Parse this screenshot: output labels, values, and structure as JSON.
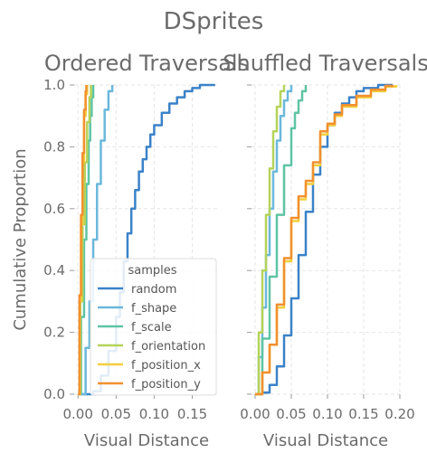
{
  "chart_data": {
    "type": "line",
    "title": "DSprites",
    "legend": {
      "title": "samples",
      "placement": "lower-right",
      "entries": [
        "random",
        "f_shape",
        "f_scale",
        "f_orientation",
        "f_position_x",
        "f_position_y"
      ]
    },
    "series_colors": {
      "random": "#3a82c8",
      "f_shape": "#6bb8db",
      "f_scale": "#5fc4a4",
      "f_orientation": "#b5d35a",
      "f_position_x": "#f2cf3e",
      "f_position_y": "#f2902e"
    },
    "grid": true,
    "ylabel": "Cumulative Proportion",
    "y_ticks": [
      "0.0",
      "0.2",
      "0.4",
      "0.6",
      "0.8",
      "1.0"
    ],
    "ylim": [
      0,
      1
    ],
    "panels": [
      {
        "title": "Ordered Traversals",
        "xlabel": "Visual Distance",
        "x_ticks": [
          "0.00",
          "0.05",
          "0.10",
          "0.15"
        ],
        "xlim": [
          -0.005,
          0.185
        ],
        "series": [
          {
            "name": "random",
            "x": [
              0.0,
              0.02,
              0.03,
              0.04,
              0.05,
              0.055,
              0.06,
              0.065,
              0.07,
              0.075,
              0.08,
              0.085,
              0.09,
              0.095,
              0.1,
              0.11,
              0.12,
              0.13,
              0.14,
              0.15,
              0.16,
              0.18
            ],
            "y": [
              0.0,
              0.01,
              0.06,
              0.14,
              0.25,
              0.33,
              0.43,
              0.52,
              0.6,
              0.66,
              0.72,
              0.76,
              0.8,
              0.84,
              0.87,
              0.91,
              0.94,
              0.96,
              0.98,
              0.99,
              1.0,
              1.0
            ]
          },
          {
            "name": "f_shape",
            "x": [
              0.0,
              0.01,
              0.015,
              0.02,
              0.025,
              0.03,
              0.035,
              0.04,
              0.045
            ],
            "y": [
              0.0,
              0.15,
              0.3,
              0.5,
              0.68,
              0.82,
              0.92,
              0.98,
              1.0
            ]
          },
          {
            "name": "f_scale",
            "x": [
              0.0,
              0.004,
              0.008,
              0.011,
              0.014,
              0.016,
              0.018,
              0.02
            ],
            "y": [
              0.0,
              0.25,
              0.5,
              0.68,
              0.82,
              0.9,
              0.96,
              1.0
            ]
          },
          {
            "name": "f_orientation",
            "x": [
              0.0,
              0.003,
              0.006,
              0.009,
              0.012,
              0.015,
              0.017
            ],
            "y": [
              0.0,
              0.3,
              0.55,
              0.75,
              0.88,
              0.96,
              1.0
            ]
          },
          {
            "name": "f_position_x",
            "x": [
              0.0,
              0.002,
              0.004,
              0.006,
              0.008,
              0.01,
              0.012
            ],
            "y": [
              0.0,
              0.3,
              0.55,
              0.75,
              0.9,
              0.97,
              1.0
            ]
          },
          {
            "name": "f_position_y",
            "x": [
              0.0,
              0.002,
              0.004,
              0.006,
              0.008,
              0.01,
              0.011
            ],
            "y": [
              0.0,
              0.32,
              0.58,
              0.78,
              0.92,
              0.98,
              1.0
            ]
          }
        ]
      },
      {
        "title": "Shuffled Traversals",
        "xlabel": "Visual Distance",
        "x_ticks": [
          "0.00",
          "0.05",
          "0.10",
          "0.15",
          "0.20"
        ],
        "xlim": [
          -0.005,
          0.2
        ],
        "series": [
          {
            "name": "random",
            "x": [
              0.0,
              0.01,
              0.02,
              0.03,
              0.04,
              0.05,
              0.06,
              0.07,
              0.08,
              0.09,
              0.1,
              0.11,
              0.12,
              0.13,
              0.14,
              0.15,
              0.17,
              0.19
            ],
            "y": [
              0.0,
              0.005,
              0.03,
              0.09,
              0.19,
              0.31,
              0.45,
              0.59,
              0.71,
              0.8,
              0.87,
              0.91,
              0.94,
              0.96,
              0.98,
              0.99,
              1.0,
              1.0
            ]
          },
          {
            "name": "f_shape",
            "x": [
              0.0,
              0.005,
              0.01,
              0.015,
              0.02,
              0.025,
              0.03,
              0.035,
              0.04,
              0.045,
              0.05
            ],
            "y": [
              0.0,
              0.12,
              0.28,
              0.45,
              0.6,
              0.72,
              0.82,
              0.9,
              0.95,
              0.98,
              1.0
            ]
          },
          {
            "name": "f_scale",
            "x": [
              0.0,
              0.01,
              0.02,
              0.03,
              0.04,
              0.05,
              0.055,
              0.06,
              0.065,
              0.07
            ],
            "y": [
              0.0,
              0.18,
              0.38,
              0.58,
              0.74,
              0.86,
              0.91,
              0.95,
              0.98,
              1.0
            ]
          },
          {
            "name": "f_orientation",
            "x": [
              0.0,
              0.005,
              0.01,
              0.015,
              0.02,
              0.025,
              0.03,
              0.035,
              0.04
            ],
            "y": [
              0.0,
              0.2,
              0.4,
              0.58,
              0.73,
              0.85,
              0.93,
              0.98,
              1.0
            ]
          },
          {
            "name": "f_position_x",
            "x": [
              0.0,
              0.01,
              0.02,
              0.03,
              0.04,
              0.05,
              0.06,
              0.07,
              0.08,
              0.09,
              0.1,
              0.11,
              0.12,
              0.14,
              0.16,
              0.18,
              0.195
            ],
            "y": [
              0.0,
              0.07,
              0.16,
              0.28,
              0.43,
              0.56,
              0.63,
              0.68,
              0.74,
              0.84,
              0.87,
              0.9,
              0.93,
              0.96,
              0.98,
              0.995,
              1.0
            ]
          },
          {
            "name": "f_position_y",
            "x": [
              0.0,
              0.01,
              0.02,
              0.03,
              0.04,
              0.05,
              0.06,
              0.07,
              0.08,
              0.09,
              0.1,
              0.11,
              0.12,
              0.14,
              0.16,
              0.18,
              0.19
            ],
            "y": [
              0.0,
              0.07,
              0.16,
              0.29,
              0.44,
              0.57,
              0.64,
              0.69,
              0.75,
              0.85,
              0.875,
              0.905,
              0.935,
              0.965,
              0.985,
              0.997,
              1.0
            ]
          }
        ]
      }
    ]
  }
}
